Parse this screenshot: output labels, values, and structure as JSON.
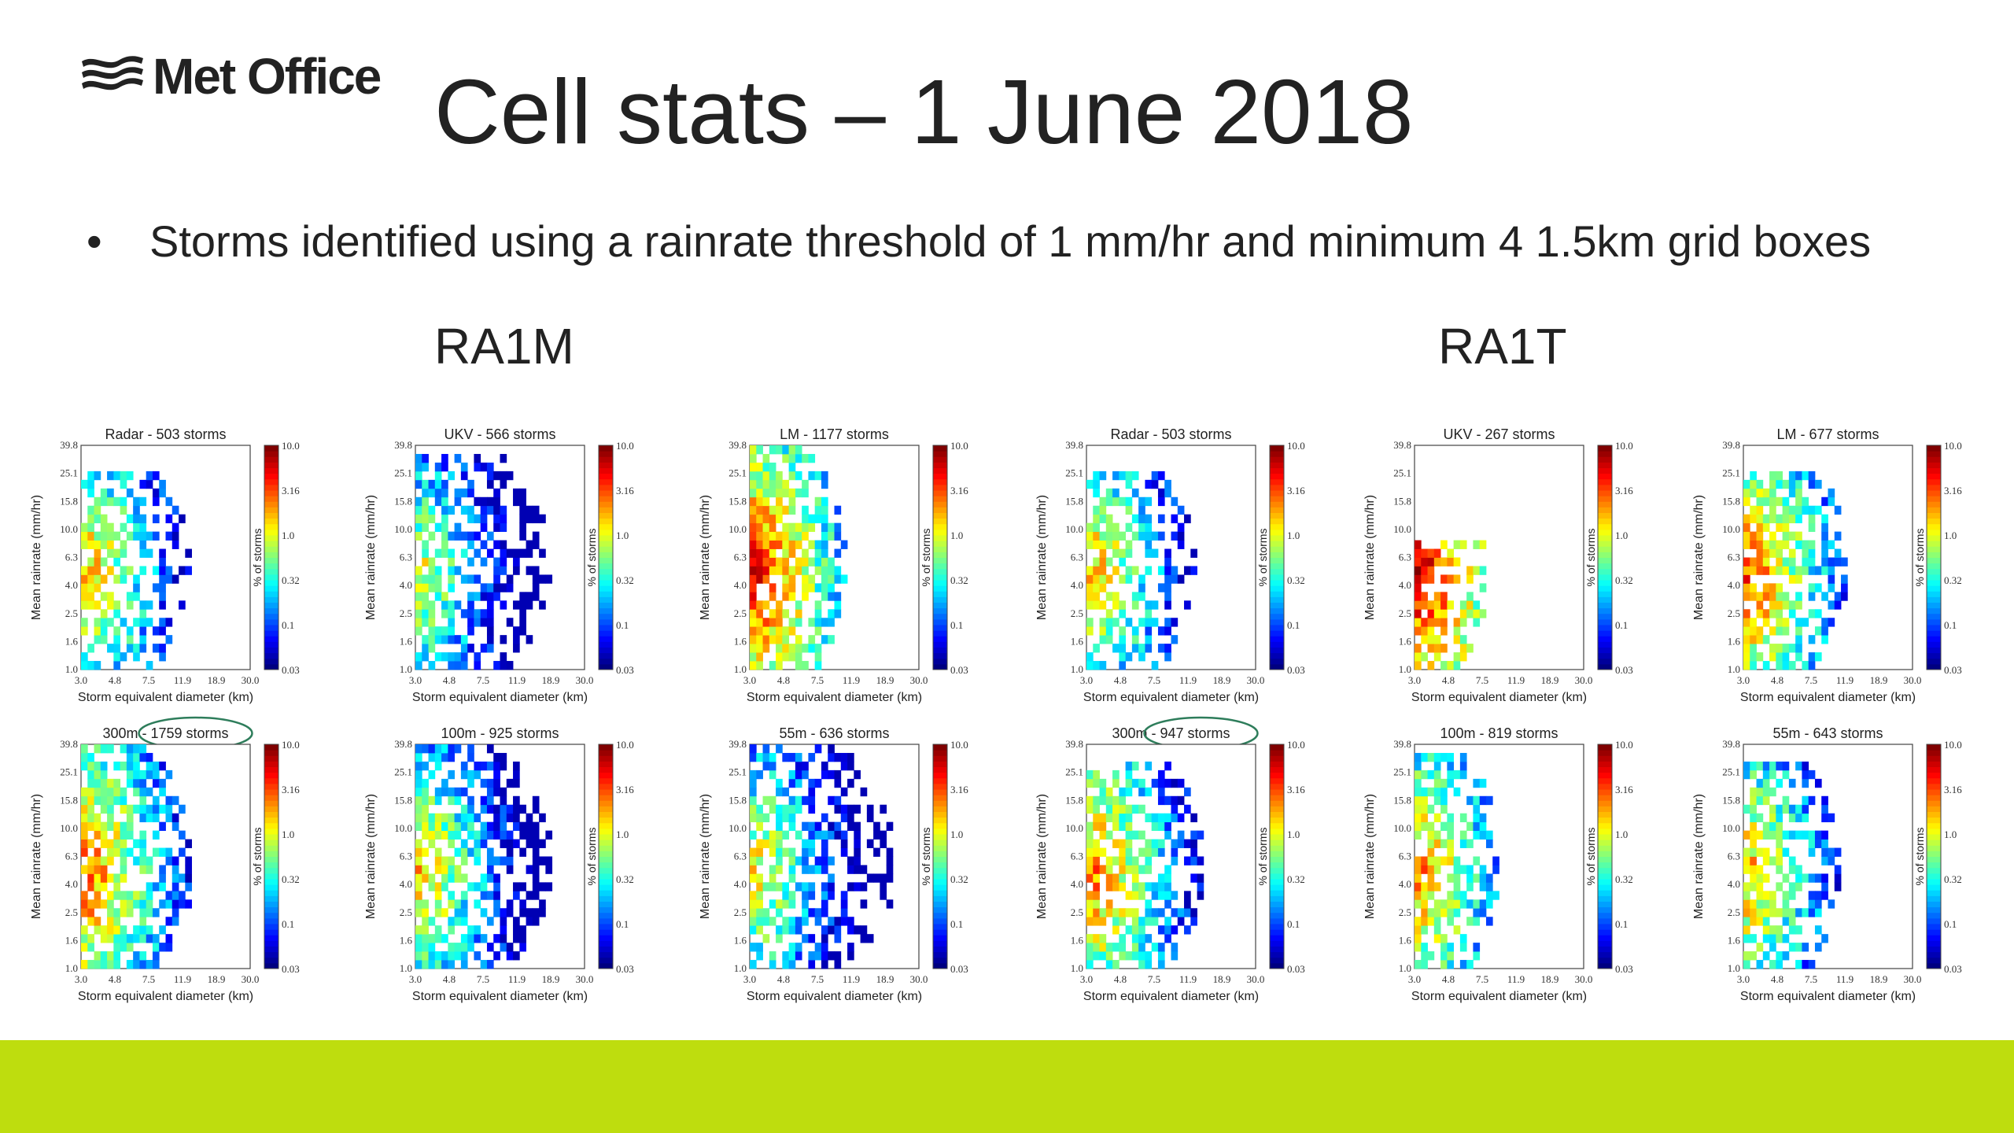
{
  "header": {
    "logo_text": "Met Office",
    "title": "Cell stats – 1 June 2018"
  },
  "bullets": [
    "Storms identified using a rainrate threshold of 1 mm/hr and minimum 4 1.5km grid boxes"
  ],
  "groups": [
    {
      "label": "RA1M"
    },
    {
      "label": "RA1T"
    }
  ],
  "colors": {
    "footer_bar": "#bedd0e",
    "circle_highlight": "#2e7d5b"
  },
  "chart_data": [
    {
      "type": "heatmap",
      "group": "RA1M",
      "title": "Radar - 503 storms",
      "circled": null,
      "profile": "radar",
      "xlabel": "Storm equivalent diameter (km)",
      "ylabel": "Mean rainrate (mm/hr)",
      "xticks": [
        "3.0",
        "4.8",
        "7.5",
        "11.9",
        "18.9",
        "30.0"
      ],
      "yticks": [
        "1.0",
        "1.6",
        "2.5",
        "4.0",
        "6.3",
        "10.0",
        "15.8",
        "25.1",
        "39.8"
      ],
      "colorbar": {
        "label": "% of storms",
        "ticks": [
          "0.03",
          "0.1",
          "0.32",
          "1.0",
          "3.16",
          "10.0"
        ],
        "scale": "log"
      }
    },
    {
      "type": "heatmap",
      "group": "RA1M",
      "title": "UKV - 566 storms",
      "circled": null,
      "profile": "ukv",
      "xlabel": "Storm equivalent diameter (km)",
      "ylabel": "Mean rainrate (mm/hr)",
      "xticks": [
        "3.0",
        "4.8",
        "7.5",
        "11.9",
        "18.9",
        "30.0"
      ],
      "yticks": [
        "1.0",
        "1.6",
        "2.5",
        "4.0",
        "6.3",
        "10.0",
        "15.8",
        "25.1",
        "39.8"
      ],
      "colorbar": {
        "label": "% of storms",
        "ticks": [
          "0.03",
          "0.1",
          "0.32",
          "1.0",
          "3.16",
          "10.0"
        ],
        "scale": "log"
      }
    },
    {
      "type": "heatmap",
      "group": "RA1M",
      "title": "LM - 1177 storms",
      "circled": null,
      "profile": "lm",
      "xlabel": "Storm equivalent diameter (km)",
      "ylabel": "Mean rainrate (mm/hr)",
      "xticks": [
        "3.0",
        "4.8",
        "7.5",
        "11.9",
        "18.9",
        "30.0"
      ],
      "yticks": [
        "1.0",
        "1.6",
        "2.5",
        "4.0",
        "6.3",
        "10.0",
        "15.8",
        "25.1",
        "39.8"
      ],
      "colorbar": {
        "label": "% of storms",
        "ticks": [
          "0.03",
          "0.1",
          "0.32",
          "1.0",
          "3.16",
          "10.0"
        ],
        "scale": "log"
      }
    },
    {
      "type": "heatmap",
      "group": "RA1M",
      "title": "300m - 1759 storms",
      "circled": "1759 storms",
      "profile": "m300",
      "xlabel": "Storm equivalent diameter (km)",
      "ylabel": "Mean rainrate (mm/hr)",
      "xticks": [
        "3.0",
        "4.8",
        "7.5",
        "11.9",
        "18.9",
        "30.0"
      ],
      "yticks": [
        "1.0",
        "1.6",
        "2.5",
        "4.0",
        "6.3",
        "10.0",
        "15.8",
        "25.1",
        "39.8"
      ],
      "colorbar": {
        "label": "% of storms",
        "ticks": [
          "0.03",
          "0.1",
          "0.32",
          "1.0",
          "3.16",
          "10.0"
        ],
        "scale": "log"
      }
    },
    {
      "type": "heatmap",
      "group": "RA1M",
      "title": "100m - 925 storms",
      "circled": null,
      "profile": "m100",
      "xlabel": "Storm equivalent diameter (km)",
      "ylabel": "Mean rainrate (mm/hr)",
      "xticks": [
        "3.0",
        "4.8",
        "7.5",
        "11.9",
        "18.9",
        "30.0"
      ],
      "yticks": [
        "1.0",
        "1.6",
        "2.5",
        "4.0",
        "6.3",
        "10.0",
        "15.8",
        "25.1",
        "39.8"
      ],
      "colorbar": {
        "label": "% of storms",
        "ticks": [
          "0.03",
          "0.1",
          "0.32",
          "1.0",
          "3.16",
          "10.0"
        ],
        "scale": "log"
      }
    },
    {
      "type": "heatmap",
      "group": "RA1M",
      "title": "55m - 636 storms",
      "circled": null,
      "profile": "m55",
      "xlabel": "Storm equivalent diameter (km)",
      "ylabel": "Mean rainrate (mm/hr)",
      "xticks": [
        "3.0",
        "4.8",
        "7.5",
        "11.9",
        "18.9",
        "30.0"
      ],
      "yticks": [
        "1.0",
        "1.6",
        "2.5",
        "4.0",
        "6.3",
        "10.0",
        "15.8",
        "25.1",
        "39.8"
      ],
      "colorbar": {
        "label": "% of storms",
        "ticks": [
          "0.03",
          "0.1",
          "0.32",
          "1.0",
          "3.16",
          "10.0"
        ],
        "scale": "log"
      }
    },
    {
      "type": "heatmap",
      "group": "RA1T",
      "title": "Radar - 503 storms",
      "circled": null,
      "profile": "radar",
      "xlabel": "Storm equivalent diameter (km)",
      "ylabel": "Mean rainrate (mm/hr)",
      "xticks": [
        "3.0",
        "4.8",
        "7.5",
        "11.9",
        "18.9",
        "30.0"
      ],
      "yticks": [
        "1.0",
        "1.6",
        "2.5",
        "4.0",
        "6.3",
        "10.0",
        "15.8",
        "25.1",
        "39.8"
      ],
      "colorbar": {
        "label": "% of storms",
        "ticks": [
          "0.03",
          "0.1",
          "0.32",
          "1.0",
          "3.16",
          "10.0"
        ],
        "scale": "log"
      }
    },
    {
      "type": "heatmap",
      "group": "RA1T",
      "title": "UKV - 267 storms",
      "circled": null,
      "profile": "ukvt",
      "xlabel": "Storm equivalent diameter (km)",
      "ylabel": "Mean rainrate (mm/hr)",
      "xticks": [
        "3.0",
        "4.8",
        "7.5",
        "11.9",
        "18.9",
        "30.0"
      ],
      "yticks": [
        "1.0",
        "1.6",
        "2.5",
        "4.0",
        "6.3",
        "10.0",
        "15.8",
        "25.1",
        "39.8"
      ],
      "colorbar": {
        "label": "% of storms",
        "ticks": [
          "0.03",
          "0.1",
          "0.32",
          "1.0",
          "3.16",
          "10.0"
        ],
        "scale": "log"
      }
    },
    {
      "type": "heatmap",
      "group": "RA1T",
      "title": "LM - 677 storms",
      "circled": null,
      "profile": "lmt",
      "xlabel": "Storm equivalent diameter (km)",
      "ylabel": "Mean rainrate (mm/hr)",
      "xticks": [
        "3.0",
        "4.8",
        "7.5",
        "11.9",
        "18.9",
        "30.0"
      ],
      "yticks": [
        "1.0",
        "1.6",
        "2.5",
        "4.0",
        "6.3",
        "10.0",
        "15.8",
        "25.1",
        "39.8"
      ],
      "colorbar": {
        "label": "% of storms",
        "ticks": [
          "0.03",
          "0.1",
          "0.32",
          "1.0",
          "3.16",
          "10.0"
        ],
        "scale": "log"
      }
    },
    {
      "type": "heatmap",
      "group": "RA1T",
      "title": "300m - 947 storms",
      "circled": "947 storms",
      "profile": "m300t",
      "xlabel": "Storm equivalent diameter (km)",
      "ylabel": "Mean rainrate (mm/hr)",
      "xticks": [
        "3.0",
        "4.8",
        "7.5",
        "11.9",
        "18.9",
        "30.0"
      ],
      "yticks": [
        "1.0",
        "1.6",
        "2.5",
        "4.0",
        "6.3",
        "10.0",
        "15.8",
        "25.1",
        "39.8"
      ],
      "colorbar": {
        "label": "% of storms",
        "ticks": [
          "0.03",
          "0.1",
          "0.32",
          "1.0",
          "3.16",
          "10.0"
        ],
        "scale": "log"
      }
    },
    {
      "type": "heatmap",
      "group": "RA1T",
      "title": "100m - 819 storms",
      "circled": null,
      "profile": "m100t",
      "xlabel": "Storm equivalent diameter (km)",
      "ylabel": "Mean rainrate (mm/hr)",
      "xticks": [
        "3.0",
        "4.8",
        "7.5",
        "11.9",
        "18.9",
        "30.0"
      ],
      "yticks": [
        "1.0",
        "1.6",
        "2.5",
        "4.0",
        "6.3",
        "10.0",
        "15.8",
        "25.1",
        "39.8"
      ],
      "colorbar": {
        "label": "% of storms",
        "ticks": [
          "0.03",
          "0.1",
          "0.32",
          "1.0",
          "3.16",
          "10.0"
        ],
        "scale": "log"
      }
    },
    {
      "type": "heatmap",
      "group": "RA1T",
      "title": "55m - 643 storms",
      "circled": null,
      "profile": "m55t",
      "xlabel": "Storm equivalent diameter (km)",
      "ylabel": "Mean rainrate (mm/hr)",
      "xticks": [
        "3.0",
        "4.8",
        "7.5",
        "11.9",
        "18.9",
        "30.0"
      ],
      "yticks": [
        "1.0",
        "1.6",
        "2.5",
        "4.0",
        "6.3",
        "10.0",
        "15.8",
        "25.1",
        "39.8"
      ],
      "colorbar": {
        "label": "% of storms",
        "ticks": [
          "0.03",
          "0.1",
          "0.32",
          "1.0",
          "3.16",
          "10.0"
        ],
        "scale": "log"
      }
    }
  ]
}
